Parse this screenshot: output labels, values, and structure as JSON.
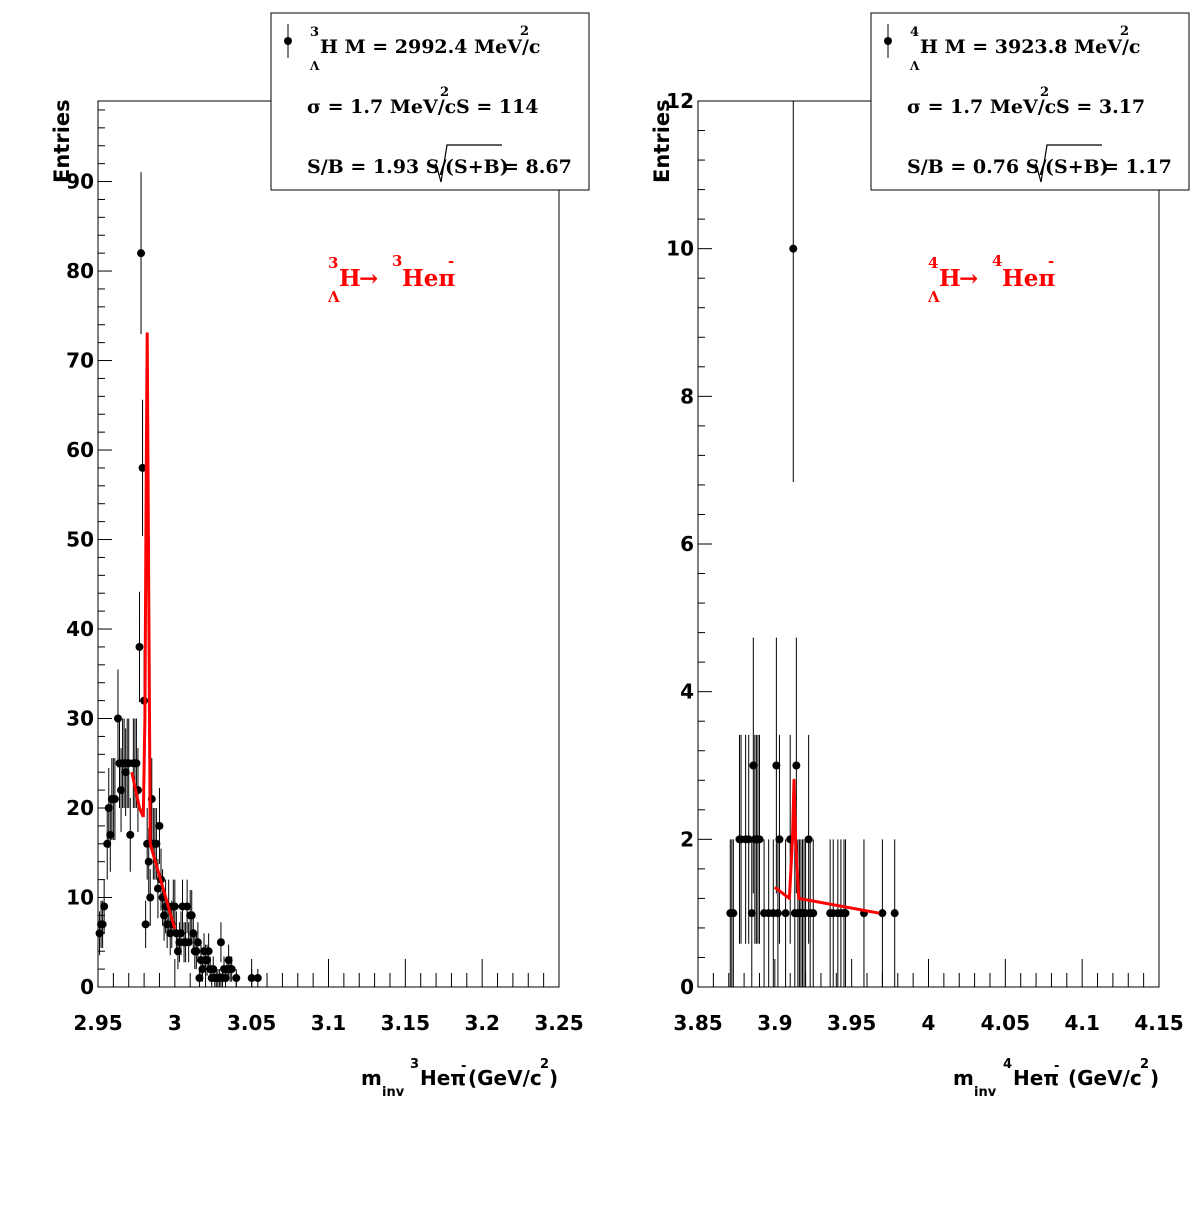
{
  "colors": {
    "points": "#000000",
    "fit": "#ff0000",
    "channel_label": "#ff0000",
    "frame": "#000000",
    "background": "#ffffff"
  },
  "chart_data": [
    {
      "type": "scatter",
      "ylabel": "Entries",
      "xlabel_parts": {
        "m": "m",
        "sub": "inv",
        "pre_sup": "3",
        "particle": "Heπ",
        "minus": "-",
        "unit_pre": "(GeV/c",
        "unit_sup": "2",
        "unit_post": ")"
      },
      "xlim": [
        2.95,
        3.25
      ],
      "ylim": [
        0,
        99
      ],
      "xticks": [
        2.95,
        3,
        3.05,
        3.1,
        3.15,
        3.2,
        3.25
      ],
      "xtick_labels": [
        "2.95",
        "3",
        "3.05",
        "3.1",
        "3.15",
        "3.2",
        "3.25"
      ],
      "yticks": [
        0,
        10,
        20,
        30,
        40,
        50,
        60,
        70,
        80,
        90
      ],
      "ytick_labels": [
        "0",
        "10",
        "20",
        "30",
        "40",
        "50",
        "60",
        "70",
        "80",
        "90"
      ],
      "channel_label": {
        "A": "3",
        "X": "H",
        "sub": "Λ",
        "arrow": "→",
        "B": "3",
        "Y": "Heπ",
        "minus": "-"
      },
      "stats": {
        "line1": {
          "sup": "3",
          "sub": "Λ",
          "text": "H M = 2992.4 MeV/c",
          "unit_sup": "2"
        },
        "line2": {
          "text": "σ = 1.7 MeV/c",
          "unit_sup": "2",
          "text2": "S =  114"
        },
        "line3": {
          "pre": "S/B = 1.93  S/",
          "root": "(S+B)",
          "post": " = 8.67"
        }
      },
      "points": [
        [
          2.951,
          6
        ],
        [
          2.952,
          7
        ],
        [
          2.953,
          7
        ],
        [
          2.954,
          9
        ],
        [
          2.956,
          16
        ],
        [
          2.957,
          20
        ],
        [
          2.958,
          17
        ],
        [
          2.959,
          21
        ],
        [
          2.96,
          21
        ],
        [
          2.961,
          21
        ],
        [
          2.963,
          30
        ],
        [
          2.964,
          25
        ],
        [
          2.965,
          22
        ],
        [
          2.966,
          25
        ],
        [
          2.967,
          25
        ],
        [
          2.968,
          24
        ],
        [
          2.969,
          25
        ],
        [
          2.97,
          25
        ],
        [
          2.971,
          17
        ],
        [
          2.973,
          25
        ],
        [
          2.974,
          25
        ],
        [
          2.975,
          25
        ],
        [
          2.976,
          22
        ],
        [
          2.977,
          38
        ],
        [
          2.978,
          82
        ],
        [
          2.979,
          58
        ],
        [
          2.98,
          32
        ],
        [
          2.981,
          7
        ],
        [
          2.982,
          16
        ],
        [
          2.983,
          14
        ],
        [
          2.984,
          10
        ],
        [
          2.985,
          21
        ],
        [
          2.986,
          16
        ],
        [
          2.987,
          16
        ],
        [
          2.988,
          16
        ],
        [
          2.989,
          11
        ],
        [
          2.99,
          18
        ],
        [
          2.991,
          12
        ],
        [
          2.992,
          10
        ],
        [
          2.993,
          8
        ],
        [
          2.994,
          9
        ],
        [
          2.995,
          7
        ],
        [
          2.996,
          9
        ],
        [
          2.997,
          6
        ],
        [
          2.998,
          7
        ],
        [
          2.999,
          9
        ],
        [
          3.0,
          9
        ],
        [
          3.001,
          6
        ],
        [
          3.002,
          4
        ],
        [
          3.003,
          5
        ],
        [
          3.004,
          6
        ],
        [
          3.005,
          9
        ],
        [
          3.006,
          5
        ],
        [
          3.007,
          5
        ],
        [
          3.008,
          9
        ],
        [
          3.009,
          5
        ],
        [
          3.01,
          8
        ],
        [
          3.011,
          8
        ],
        [
          3.012,
          6
        ],
        [
          3.013,
          4
        ],
        [
          3.014,
          4
        ],
        [
          3.015,
          5
        ],
        [
          3.016,
          1
        ],
        [
          3.017,
          3
        ],
        [
          3.018,
          2
        ],
        [
          3.019,
          4
        ],
        [
          3.02,
          3
        ],
        [
          3.021,
          3
        ],
        [
          3.022,
          4
        ],
        [
          3.023,
          2
        ],
        [
          3.024,
          1
        ],
        [
          3.025,
          2
        ],
        [
          3.026,
          1
        ],
        [
          3.027,
          1
        ],
        [
          3.028,
          1
        ],
        [
          3.029,
          1
        ],
        [
          3.03,
          5
        ],
        [
          3.031,
          1
        ],
        [
          3.032,
          2
        ],
        [
          3.033,
          1
        ],
        [
          3.034,
          2
        ],
        [
          3.035,
          3
        ],
        [
          3.036,
          2
        ],
        [
          3.037,
          2
        ],
        [
          3.04,
          1
        ],
        [
          3.05,
          1
        ],
        [
          3.054,
          1
        ]
      ],
      "fit_lines": [
        [
          [
            2.972,
            24
          ],
          [
            2.977,
            20
          ],
          [
            2.9795,
            19
          ]
        ],
        [
          [
            2.9795,
            19
          ],
          [
            2.9805,
            30
          ],
          [
            2.9815,
            60
          ],
          [
            2.982,
            73
          ],
          [
            2.9825,
            60
          ],
          [
            2.9835,
            30
          ],
          [
            2.984,
            16
          ]
        ],
        [
          [
            2.984,
            16
          ],
          [
            3.0,
            6.5
          ]
        ]
      ]
    },
    {
      "type": "scatter",
      "ylabel": "Entries",
      "xlabel_parts": {
        "m": "m",
        "sub": "inv",
        "pre_sup": "4",
        "particle": "Heπ",
        "minus": "-",
        "unit_pre": "(GeV/c",
        "unit_sup": "2",
        "unit_post": ")"
      },
      "xlim": [
        3.85,
        4.15
      ],
      "ylim": [
        0,
        12
      ],
      "xticks": [
        3.85,
        3.9,
        3.95,
        4,
        4.05,
        4.1,
        4.15
      ],
      "xtick_labels": [
        "3.85",
        "3.9",
        "3.95",
        "4",
        "4.05",
        "4.1",
        "4.15"
      ],
      "yticks": [
        0,
        2,
        4,
        6,
        8,
        10,
        12
      ],
      "ytick_labels": [
        "0",
        "2",
        "4",
        "6",
        "8",
        "10",
        "12"
      ],
      "channel_label": {
        "A": "4",
        "X": "H",
        "sub": "Λ",
        "arrow": "→",
        "B": "4",
        "Y": "Heπ",
        "minus": "-"
      },
      "stats": {
        "line1": {
          "sup": "4",
          "sub": "Λ",
          "text": "H M = 3923.8 MeV/c",
          "unit_sup": "2"
        },
        "line2": {
          "text": "σ = 1.7 MeV/c",
          "unit_sup": "2",
          "text2": "S = 3.17"
        },
        "line3": {
          "pre": "S/B = 0.76  S/",
          "root": "(S+B)",
          "post": " = 1.17"
        }
      },
      "points": [
        [
          3.871,
          1
        ],
        [
          3.872,
          1
        ],
        [
          3.873,
          1
        ],
        [
          3.877,
          2
        ],
        [
          3.878,
          2
        ],
        [
          3.881,
          2
        ],
        [
          3.883,
          2
        ],
        [
          3.885,
          1
        ],
        [
          3.886,
          3
        ],
        [
          3.887,
          2
        ],
        [
          3.888,
          2
        ],
        [
          3.889,
          2
        ],
        [
          3.89,
          2
        ],
        [
          3.893,
          1
        ],
        [
          3.896,
          1
        ],
        [
          3.899,
          1
        ],
        [
          3.901,
          3
        ],
        [
          3.902,
          1
        ],
        [
          3.903,
          2
        ],
        [
          3.907,
          1
        ],
        [
          3.91,
          2
        ],
        [
          3.912,
          10
        ],
        [
          3.913,
          1
        ],
        [
          3.914,
          3
        ],
        [
          3.915,
          1
        ],
        [
          3.916,
          1
        ],
        [
          3.917,
          1
        ],
        [
          3.918,
          1
        ],
        [
          3.919,
          1
        ],
        [
          3.92,
          1
        ],
        [
          3.922,
          2
        ],
        [
          3.923,
          1
        ],
        [
          3.925,
          1
        ],
        [
          3.936,
          1
        ],
        [
          3.938,
          1
        ],
        [
          3.941,
          1
        ],
        [
          3.943,
          1
        ],
        [
          3.945,
          1
        ],
        [
          3.946,
          1
        ],
        [
          3.958,
          1
        ],
        [
          3.97,
          1
        ],
        [
          3.978,
          1
        ]
      ],
      "fit_lines": [
        [
          [
            3.9,
            1.35
          ],
          [
            3.9095,
            1.2
          ],
          [
            3.9115,
            2.0
          ],
          [
            3.9125,
            2.8
          ],
          [
            3.9135,
            2.0
          ],
          [
            3.9155,
            1.2
          ],
          [
            3.968,
            1.0
          ]
        ]
      ]
    }
  ]
}
